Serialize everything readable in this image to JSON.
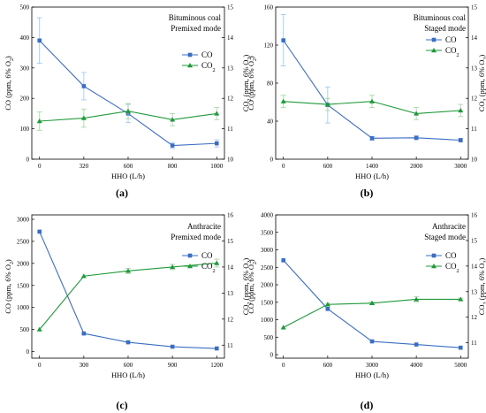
{
  "colors": {
    "co": "#3A6EC4",
    "co2": "#1F9A3A",
    "errorbar_co": "#9EC3E6",
    "errorbar_co2": "#9FD39F"
  },
  "chart_data": [
    {
      "panel_label": "(a)",
      "type": "line",
      "fuel": "Bituminous coal",
      "mode": "Premixed mode",
      "xlabel": "HHO (L/h)",
      "ylabel_left": "CO (ppm, 6% O₂)",
      "ylabel_right": "CO₂ (ppm, 6% O₂)",
      "categories": [
        "0",
        "320",
        "600",
        "800",
        "1000"
      ],
      "ylim_left": [
        0,
        500
      ],
      "yticks_left": [
        0,
        100,
        200,
        300,
        400,
        500
      ],
      "ylim_right": [
        10,
        15
      ],
      "yticks_right": [
        10,
        11,
        12,
        13,
        14,
        15
      ],
      "series": [
        {
          "name": "CO",
          "axis": "left",
          "values": [
            390,
            240,
            150,
            45,
            52
          ],
          "errors": [
            75,
            45,
            30,
            10,
            12
          ]
        },
        {
          "name": "CO₂",
          "axis": "right",
          "values": [
            11.25,
            11.35,
            11.58,
            11.3,
            11.5
          ],
          "errors": [
            0.3,
            0.3,
            0.25,
            0.2,
            0.2
          ]
        }
      ]
    },
    {
      "panel_label": "(b)",
      "type": "line",
      "fuel": "Bituminous coal",
      "mode": "Staged mode",
      "xlabel": "HHO (L/h)",
      "ylabel_left": "CO (ppm, 6% O₂)",
      "ylabel_right": "CO₂ (ppm, 6% O₂)",
      "categories": [
        "0",
        "600",
        "1400",
        "2000",
        "3000"
      ],
      "ylim_left": [
        0,
        160
      ],
      "yticks_left": [
        0,
        40,
        80,
        120,
        160
      ],
      "ylim_right": [
        10,
        15
      ],
      "yticks_right": [
        10,
        11,
        12,
        13,
        14,
        15
      ],
      "series": [
        {
          "name": "CO",
          "axis": "left",
          "values": [
            125,
            57,
            22,
            22.5,
            20
          ],
          "errors": [
            27,
            19,
            2,
            2,
            2
          ]
        },
        {
          "name": "CO₂",
          "axis": "right",
          "values": [
            11.9,
            11.8,
            11.9,
            11.5,
            11.6
          ],
          "errors": [
            0.2,
            0.2,
            0.2,
            0.2,
            0.2
          ]
        }
      ]
    },
    {
      "panel_label": "(c)",
      "type": "line",
      "fuel": "Anthracite",
      "mode": "Premixed mode",
      "xlabel": "HHO (L/h)",
      "ylabel_left": "CO (ppm, 6% O₂)",
      "ylabel_right": "CO₂ (ppm, 6% O₂)",
      "categories": [
        "0",
        "300",
        "600",
        "900",
        "1200"
      ],
      "ylim_left": [
        -150,
        3100
      ],
      "yticks_left": [
        0,
        500,
        1000,
        1500,
        2000,
        2500,
        3000
      ],
      "ylim_right": [
        10.5,
        16
      ],
      "yticks_right": [
        11,
        12,
        13,
        14,
        15,
        16
      ],
      "series": [
        {
          "name": "CO",
          "axis": "left",
          "values": [
            2720,
            410,
            210,
            110,
            70
          ],
          "errors": [
            0,
            0,
            0,
            0,
            0
          ]
        },
        {
          "name": "CO₂",
          "axis": "right",
          "values": [
            11.6,
            13.65,
            13.85,
            14.0,
            14.15
          ],
          "errors": [
            0,
            0,
            0.1,
            0.1,
            0.15
          ]
        }
      ]
    },
    {
      "panel_label": "(d)",
      "type": "line",
      "fuel": "Anthracite",
      "mode": "Staged mode",
      "xlabel": "HHO (L/h)",
      "ylabel_left": "CO (ppm, 6% O₂)",
      "ylabel_right": "CO₂ (ppm, 6% O₂)",
      "categories": [
        "0",
        "600",
        "3000",
        "4000",
        "5000"
      ],
      "ylim_left": [
        -100,
        4000
      ],
      "yticks_left": [
        0,
        500,
        1000,
        1500,
        2000,
        2500,
        3000,
        3500,
        4000
      ],
      "ylim_right": [
        10.4,
        16
      ],
      "yticks_right": [
        11,
        12,
        13,
        14,
        15,
        16
      ],
      "series": [
        {
          "name": "CO",
          "axis": "left",
          "values": [
            2700,
            1310,
            380,
            290,
            200
          ],
          "errors": [
            0,
            0,
            0,
            0,
            0
          ]
        },
        {
          "name": "CO₂",
          "axis": "right",
          "values": [
            11.6,
            12.5,
            12.55,
            12.7,
            12.7
          ],
          "errors": [
            0,
            0.05,
            0.05,
            0.1,
            0.05
          ]
        }
      ]
    }
  ]
}
